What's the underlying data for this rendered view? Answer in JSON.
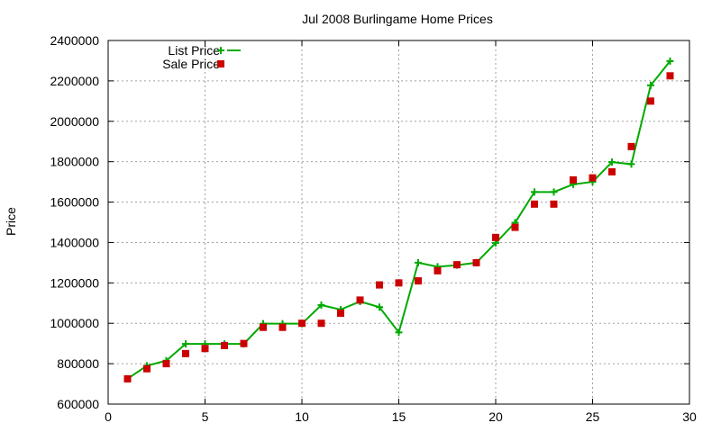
{
  "chart_data": {
    "type": "line",
    "title": "Jul 2008 Burlingame Home Prices",
    "xlabel": "",
    "ylabel": "Price",
    "xlim": [
      0,
      30
    ],
    "ylim": [
      600000,
      2400000
    ],
    "xticks": [
      0,
      5,
      10,
      15,
      20,
      25,
      30
    ],
    "yticks": [
      600000,
      800000,
      1000000,
      1200000,
      1400000,
      1600000,
      1800000,
      2000000,
      2200000,
      2400000
    ],
    "grid": true,
    "legend": "top-left",
    "series": [
      {
        "name": "List Price",
        "style": "line-points",
        "color": "#00aa00",
        "marker": "plus",
        "x": [
          1,
          2,
          3,
          4,
          5,
          6,
          7,
          8,
          9,
          10,
          11,
          12,
          13,
          14,
          15,
          16,
          17,
          18,
          19,
          20,
          21,
          22,
          23,
          24,
          25,
          26,
          27,
          28,
          29
        ],
        "y": [
          725000,
          790000,
          815000,
          898000,
          898000,
          898000,
          898000,
          998000,
          998000,
          998000,
          1090000,
          1068000,
          1108000,
          1080000,
          955000,
          1300000,
          1280000,
          1288000,
          1300000,
          1398000,
          1498000,
          1650000,
          1650000,
          1688000,
          1700000,
          1798000,
          1788000,
          2178000,
          2298000
        ]
      },
      {
        "name": "Sale Price",
        "style": "points",
        "color": "#cc0000",
        "marker": "square",
        "x": [
          1,
          2,
          3,
          4,
          5,
          6,
          7,
          8,
          9,
          10,
          11,
          12,
          13,
          14,
          15,
          16,
          17,
          18,
          19,
          20,
          21,
          22,
          23,
          24,
          25,
          26,
          27,
          28,
          29
        ],
        "y": [
          725000,
          775000,
          800000,
          850000,
          875000,
          890000,
          900000,
          980000,
          980000,
          1000000,
          1000000,
          1050000,
          1115000,
          1190000,
          1200000,
          1210000,
          1260000,
          1290000,
          1300000,
          1425000,
          1475000,
          1590000,
          1590000,
          1710000,
          1720000,
          1750000,
          1875000,
          2100000,
          2225000
        ]
      }
    ]
  }
}
